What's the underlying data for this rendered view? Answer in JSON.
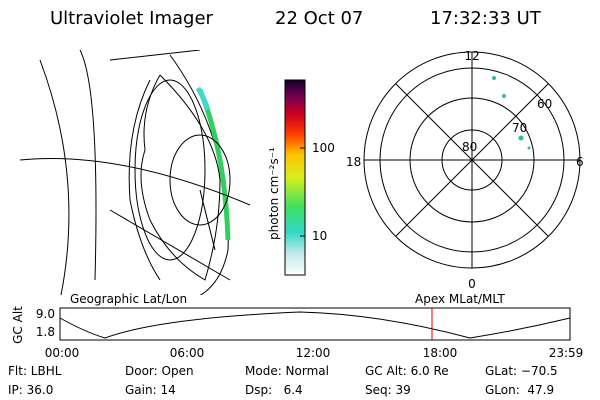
{
  "header": {
    "title": "Ultraviolet Imager",
    "date": "22 Oct 07",
    "time": "17:32:33 UT"
  },
  "colorbar": {
    "label": "photon cm⁻²s⁻¹",
    "ticks": [
      "100",
      "10"
    ]
  },
  "polar_plot": {
    "mlt_labels": [
      "12",
      "18",
      "6",
      "0"
    ],
    "lat_labels": [
      "60",
      "70",
      "80"
    ]
  },
  "orbit_plot": {
    "left_title": "Geographic Lat/Lon",
    "right_title": "Apex MLat/MLT",
    "y_label": "GC Alt",
    "y_ticks": [
      "9.0",
      "1.8"
    ],
    "x_ticks": [
      "00:00",
      "06:00",
      "12:00",
      "18:00",
      "23:59"
    ]
  },
  "info": [
    [
      "Flt: LBHL",
      "IP: 36.0"
    ],
    [
      "Door: Open",
      "Gain: 14"
    ],
    [
      "Mode: Normal",
      "Dsp:   6.4"
    ],
    [
      "GC Alt: 6.0 Re",
      "Seq: 39"
    ],
    [
      "GLat: −70.5",
      "GLon:  47.9"
    ]
  ]
}
